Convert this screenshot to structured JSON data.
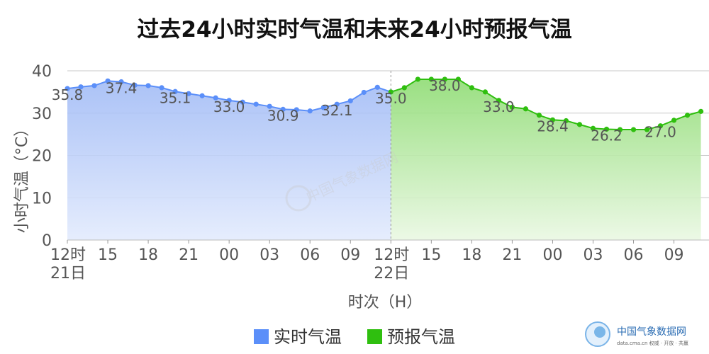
{
  "chart_data": {
    "type": "area",
    "title": "过去24小时实时气温和未来24小时预报气温",
    "ylabel": "小时气温（°C）",
    "xlabel": "时次（H）",
    "ylim": [
      0,
      40
    ],
    "yticks": [
      0,
      10,
      20,
      30,
      40
    ],
    "grid": true,
    "legend_position": "bottom",
    "xticks": [
      {
        "x": 0,
        "label": "12时",
        "sub": "21日"
      },
      {
        "x": 3,
        "label": "15"
      },
      {
        "x": 6,
        "label": "18"
      },
      {
        "x": 9,
        "label": "21"
      },
      {
        "x": 12,
        "label": "00"
      },
      {
        "x": 15,
        "label": "03"
      },
      {
        "x": 18,
        "label": "06"
      },
      {
        "x": 21,
        "label": "09"
      },
      {
        "x": 24,
        "label": "12时",
        "sub": "22日"
      },
      {
        "x": 27,
        "label": "15"
      },
      {
        "x": 30,
        "label": "18"
      },
      {
        "x": 33,
        "label": "21"
      },
      {
        "x": 36,
        "label": "00"
      },
      {
        "x": 39,
        "label": "03"
      },
      {
        "x": 42,
        "label": "06"
      },
      {
        "x": 45,
        "label": "09"
      }
    ],
    "series": [
      {
        "name": "实时气温",
        "color": "#5b8ff9",
        "x": [
          0,
          1,
          2,
          3,
          4,
          5,
          6,
          7,
          8,
          9,
          10,
          11,
          12,
          13,
          14,
          15,
          16,
          17,
          18,
          19,
          20,
          21,
          22,
          23,
          24
        ],
        "values": [
          35.8,
          36.2,
          36.5,
          37.6,
          37.4,
          36.6,
          36.5,
          36.0,
          35.1,
          34.6,
          34.1,
          33.6,
          33.0,
          32.6,
          32.1,
          31.6,
          30.9,
          30.8,
          30.5,
          31.3,
          32.1,
          32.9,
          34.9,
          36.1,
          35.0
        ],
        "labels": [
          {
            "x": 0,
            "value": 35.8,
            "text": "35.8"
          },
          {
            "x": 4,
            "value": 37.4,
            "text": "37.4"
          },
          {
            "x": 8,
            "value": 35.1,
            "text": "35.1"
          },
          {
            "x": 12,
            "value": 33.0,
            "text": "33.0"
          },
          {
            "x": 16,
            "value": 30.9,
            "text": "30.9"
          },
          {
            "x": 20,
            "value": 32.1,
            "text": "32.1"
          },
          {
            "x": 24,
            "value": 35.0,
            "text": "35.0"
          }
        ]
      },
      {
        "name": "预报气温",
        "color": "#2fbf0f",
        "x": [
          24,
          25,
          26,
          27,
          28,
          29,
          30,
          31,
          32,
          33,
          34,
          35,
          36,
          37,
          38,
          39,
          40,
          41,
          42,
          43,
          44,
          45,
          46,
          47
        ],
        "values": [
          35.0,
          36.0,
          38.0,
          38.0,
          38.0,
          38.0,
          36.0,
          35.0,
          33.0,
          31.4,
          31.0,
          29.5,
          28.4,
          28.2,
          27.3,
          26.4,
          26.2,
          26.1,
          26.1,
          26.1,
          27.0,
          28.3,
          29.5,
          30.4
        ],
        "labels": [
          {
            "x": 28,
            "value": 38.0,
            "text": "38.0"
          },
          {
            "x": 32,
            "value": 33.0,
            "text": "33.0"
          },
          {
            "x": 36,
            "value": 28.4,
            "text": "28.4"
          },
          {
            "x": 40,
            "value": 26.2,
            "text": "26.2"
          },
          {
            "x": 44,
            "value": 27.0,
            "text": "27.0"
          }
        ]
      }
    ]
  },
  "watermark": {
    "center_text": "中国气象数据网",
    "logo_name": "中国气象数据网",
    "logo_sub": "data.cma.cn 权威 · 开放 · 共赢"
  }
}
